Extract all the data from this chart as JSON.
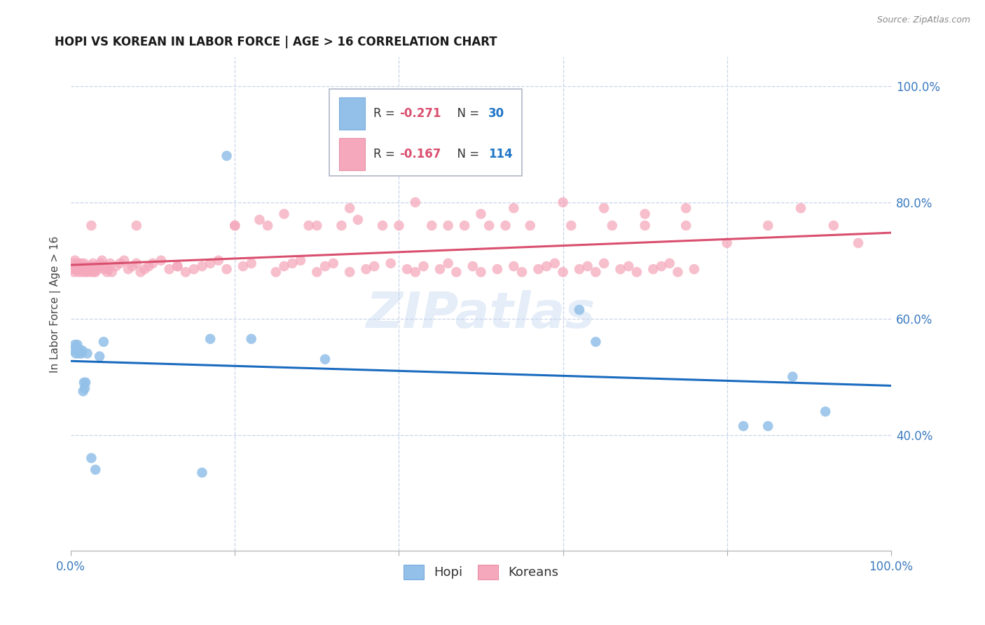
{
  "title": "HOPI VS KOREAN IN LABOR FORCE | AGE > 16 CORRELATION CHART",
  "source": "Source: ZipAtlas.com",
  "ylabel": "In Labor Force | Age > 16",
  "xlim": [
    0.0,
    1.0
  ],
  "ylim": [
    0.2,
    1.05
  ],
  "hopi_color": "#92c0e8",
  "korean_color": "#f5a8bc",
  "hopi_line_color": "#1a6bbf",
  "korean_line_color": "#d94f6e",
  "background_color": "#ffffff",
  "grid_color": "#c8d4e8",
  "watermark": "ZIPatlas",
  "legend_R1": "R = -0.271",
  "legend_N1": "N = 30",
  "legend_R2": "R = -0.167",
  "legend_N2": "N = 114",
  "hopi_x": [
    0.004,
    0.005,
    0.006,
    0.007,
    0.008,
    0.009,
    0.01,
    0.011,
    0.013,
    0.014,
    0.015,
    0.016,
    0.017,
    0.018,
    0.02,
    0.025,
    0.03,
    0.035,
    0.04,
    0.16,
    0.17,
    0.19,
    0.22,
    0.31,
    0.62,
    0.64,
    0.82,
    0.85,
    0.88,
    0.92
  ],
  "hopi_y": [
    0.545,
    0.555,
    0.54,
    0.55,
    0.555,
    0.545,
    0.54,
    0.545,
    0.54,
    0.545,
    0.475,
    0.49,
    0.48,
    0.49,
    0.54,
    0.36,
    0.34,
    0.535,
    0.56,
    0.335,
    0.565,
    0.88,
    0.565,
    0.53,
    0.615,
    0.56,
    0.415,
    0.415,
    0.5,
    0.44
  ],
  "korean_x": [
    0.002,
    0.003,
    0.004,
    0.005,
    0.006,
    0.007,
    0.008,
    0.009,
    0.01,
    0.011,
    0.012,
    0.013,
    0.014,
    0.015,
    0.016,
    0.017,
    0.018,
    0.019,
    0.02,
    0.021,
    0.022,
    0.023,
    0.024,
    0.025,
    0.026,
    0.027,
    0.028,
    0.03,
    0.032,
    0.034,
    0.036,
    0.038,
    0.04,
    0.042,
    0.044,
    0.046,
    0.048,
    0.05,
    0.055,
    0.06,
    0.065,
    0.07,
    0.075,
    0.08,
    0.085,
    0.09,
    0.095,
    0.1,
    0.11,
    0.12,
    0.13,
    0.14,
    0.15,
    0.16,
    0.17,
    0.18,
    0.19,
    0.2,
    0.21,
    0.22,
    0.23,
    0.24,
    0.25,
    0.26,
    0.27,
    0.28,
    0.29,
    0.3,
    0.31,
    0.32,
    0.33,
    0.34,
    0.35,
    0.36,
    0.37,
    0.38,
    0.39,
    0.4,
    0.41,
    0.42,
    0.43,
    0.44,
    0.45,
    0.46,
    0.47,
    0.48,
    0.49,
    0.5,
    0.51,
    0.52,
    0.53,
    0.54,
    0.55,
    0.56,
    0.57,
    0.58,
    0.59,
    0.6,
    0.61,
    0.62,
    0.63,
    0.64,
    0.65,
    0.66,
    0.67,
    0.68,
    0.69,
    0.7,
    0.71,
    0.72,
    0.73,
    0.74,
    0.75,
    0.76
  ],
  "korean_y": [
    0.685,
    0.695,
    0.68,
    0.7,
    0.685,
    0.69,
    0.695,
    0.68,
    0.685,
    0.69,
    0.695,
    0.68,
    0.69,
    0.685,
    0.695,
    0.68,
    0.685,
    0.69,
    0.68,
    0.685,
    0.69,
    0.685,
    0.68,
    0.69,
    0.685,
    0.695,
    0.68,
    0.69,
    0.685,
    0.69,
    0.695,
    0.7,
    0.685,
    0.69,
    0.68,
    0.685,
    0.695,
    0.68,
    0.69,
    0.695,
    0.7,
    0.685,
    0.69,
    0.695,
    0.68,
    0.685,
    0.69,
    0.695,
    0.7,
    0.685,
    0.69,
    0.68,
    0.685,
    0.69,
    0.695,
    0.7,
    0.685,
    0.76,
    0.69,
    0.695,
    0.77,
    0.76,
    0.68,
    0.69,
    0.695,
    0.7,
    0.76,
    0.68,
    0.69,
    0.695,
    0.76,
    0.68,
    0.77,
    0.685,
    0.69,
    0.76,
    0.695,
    0.76,
    0.685,
    0.68,
    0.69,
    0.76,
    0.685,
    0.695,
    0.68,
    0.76,
    0.69,
    0.68,
    0.76,
    0.685,
    0.76,
    0.69,
    0.68,
    0.76,
    0.685,
    0.69,
    0.695,
    0.68,
    0.76,
    0.685,
    0.69,
    0.68,
    0.695,
    0.76,
    0.685,
    0.69,
    0.68,
    0.76,
    0.685,
    0.69,
    0.695,
    0.68,
    0.76,
    0.685
  ],
  "extra_korean_x": [
    0.015,
    0.02,
    0.025,
    0.03,
    0.04,
    0.08,
    0.13,
    0.2,
    0.26,
    0.3,
    0.34,
    0.42,
    0.46,
    0.5,
    0.54,
    0.6,
    0.65,
    0.7,
    0.75,
    0.8,
    0.85,
    0.89,
    0.93,
    0.96
  ],
  "extra_korean_y": [
    0.69,
    0.685,
    0.76,
    0.68,
    0.69,
    0.76,
    0.69,
    0.76,
    0.78,
    0.76,
    0.79,
    0.8,
    0.76,
    0.78,
    0.79,
    0.8,
    0.79,
    0.78,
    0.79,
    0.73,
    0.76,
    0.79,
    0.76,
    0.73
  ]
}
